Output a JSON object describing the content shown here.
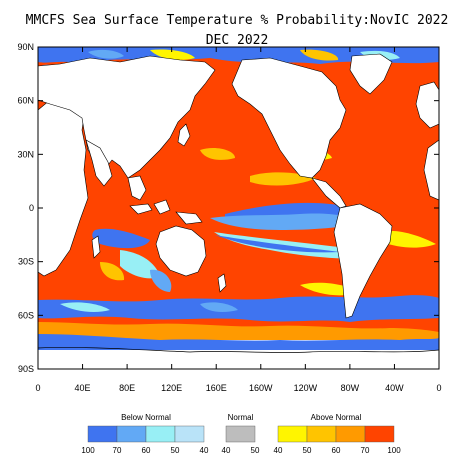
{
  "title_line1": "MMCFS Sea Surface Temperature % Probability:NovIC 2022",
  "title_line2": "DEC 2022",
  "map": {
    "lat_ticks": [
      "90N",
      "60N",
      "30N",
      "0",
      "30S",
      "60S",
      "90S"
    ],
    "lon_ticks": [
      "0",
      "40E",
      "80E",
      "120E",
      "160E",
      "160W",
      "120W",
      "80W",
      "40W",
      "0"
    ]
  },
  "legend": {
    "below": {
      "label": "Below Normal",
      "ticks": [
        "100",
        "70",
        "60",
        "50",
        "40"
      ],
      "colors": [
        "#3f74f0",
        "#62a9f5",
        "#98eff5",
        "#b9e3f8"
      ]
    },
    "normal": {
      "label": "Normal",
      "ticks": [
        "40",
        "50"
      ],
      "colors": [
        "#bdbdbd"
      ]
    },
    "above": {
      "label": "Above Normal",
      "ticks": [
        "40",
        "50",
        "60",
        "70",
        "100"
      ],
      "colors": [
        "#fff500",
        "#ffc400",
        "#ff9a00",
        "#ff4400"
      ]
    }
  },
  "colors": {
    "above_strong": "#ff4400",
    "above_mid": "#ff9a00",
    "above_weak": "#ffc400",
    "above_min": "#fff500",
    "below_strong": "#3f74f0",
    "below_mid": "#62a9f5",
    "below_weak": "#98eff5",
    "normal": "#bdbdbd",
    "land": "#ffffff"
  }
}
